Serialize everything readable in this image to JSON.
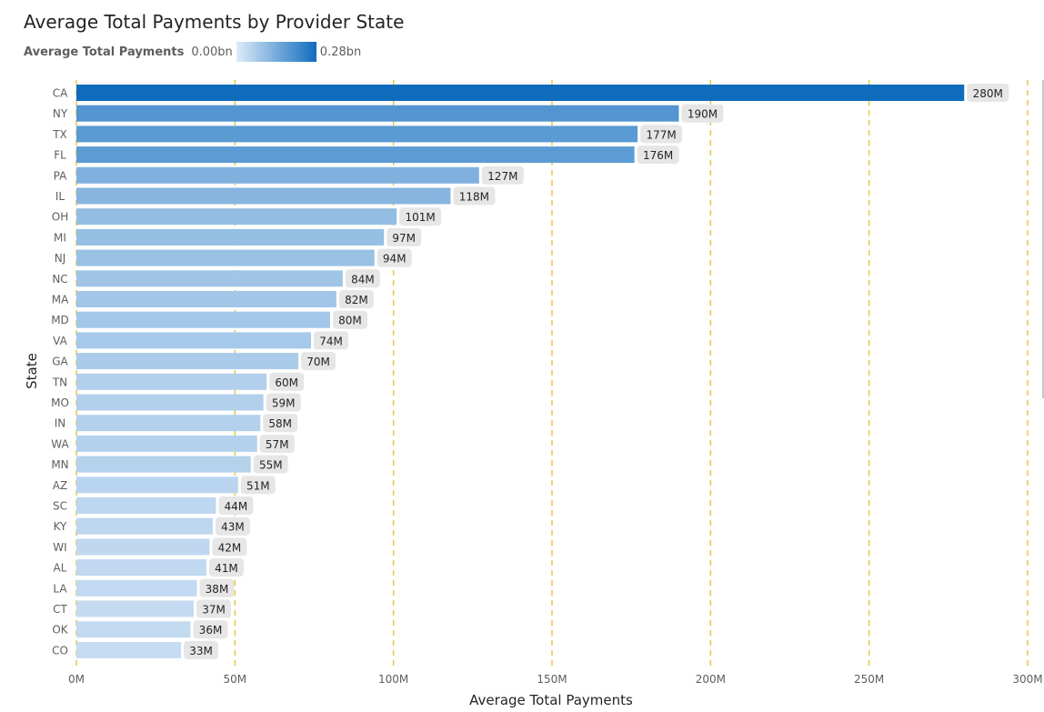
{
  "chart_data": {
    "type": "bar",
    "orientation": "horizontal",
    "title": "Average Total Payments by Provider State",
    "xlabel": "Average Total Payments",
    "ylabel": "State",
    "xlim": [
      0,
      300000000
    ],
    "x_ticks": [
      {
        "value": 0,
        "label": "0M"
      },
      {
        "value": 50000000,
        "label": "50M"
      },
      {
        "value": 100000000,
        "label": "100M"
      },
      {
        "value": 150000000,
        "label": "150M"
      },
      {
        "value": 200000000,
        "label": "200M"
      },
      {
        "value": 250000000,
        "label": "250M"
      },
      {
        "value": 300000000,
        "label": "300M"
      }
    ],
    "grid": true,
    "gridline_color": "#e8c547",
    "legend": {
      "title": "Average Total Payments",
      "min_label": "0.00bn",
      "max_label": "0.28bn",
      "color_min": "#deebf9",
      "color_max": "#0f6cbd",
      "placement": "top-left"
    },
    "categories": [
      "CA",
      "NY",
      "TX",
      "FL",
      "PA",
      "IL",
      "OH",
      "MI",
      "NJ",
      "NC",
      "MA",
      "MD",
      "VA",
      "GA",
      "TN",
      "MO",
      "IN",
      "WA",
      "MN",
      "AZ",
      "SC",
      "KY",
      "WI",
      "AL",
      "LA",
      "CT",
      "OK",
      "CO"
    ],
    "values": [
      280000000,
      190000000,
      177000000,
      176000000,
      127000000,
      118000000,
      101000000,
      97000000,
      94000000,
      84000000,
      82000000,
      80000000,
      74000000,
      70000000,
      60000000,
      59000000,
      58000000,
      57000000,
      55000000,
      51000000,
      44000000,
      43000000,
      42000000,
      41000000,
      38000000,
      37000000,
      36000000,
      33000000
    ],
    "data_labels": [
      "280M",
      "190M",
      "177M",
      "176M",
      "127M",
      "118M",
      "101M",
      "97M",
      "94M",
      "84M",
      "82M",
      "80M",
      "74M",
      "70M",
      "60M",
      "59M",
      "58M",
      "57M",
      "55M",
      "51M",
      "44M",
      "43M",
      "42M",
      "41M",
      "38M",
      "37M",
      "36M",
      "33M"
    ]
  }
}
